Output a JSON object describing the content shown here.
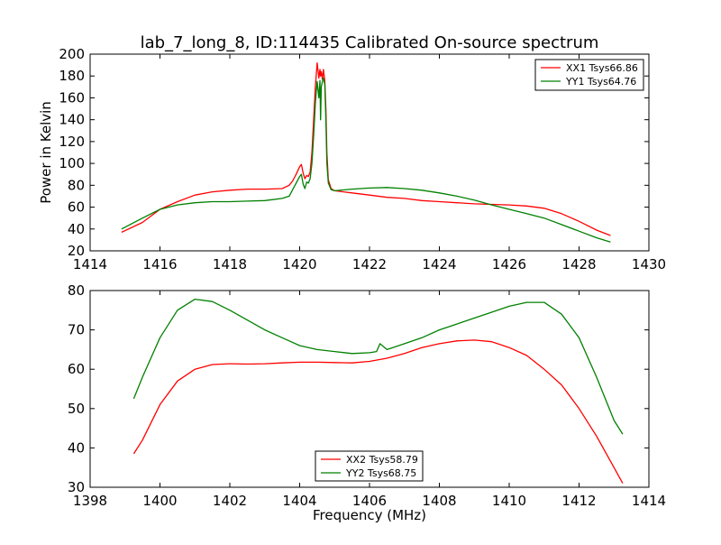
{
  "figure": {
    "title": "lab_7_long_8, ID:114435 Calibrated On-source spectrum",
    "xlabel": "Frequency (MHz)"
  },
  "colors": {
    "red": "#ff0000",
    "green": "#008000"
  },
  "chart_data": [
    {
      "type": "line",
      "title": "lab_7_long_8, ID:114435 Calibrated On-source spectrum",
      "xlabel": "",
      "ylabel": "Power in Kelvin",
      "xlim": [
        1414,
        1430
      ],
      "ylim": [
        20,
        200
      ],
      "xticks": [
        1414,
        1416,
        1418,
        1420,
        1422,
        1424,
        1426,
        1428,
        1430
      ],
      "yticks": [
        20,
        40,
        60,
        80,
        100,
        120,
        140,
        160,
        180,
        200
      ],
      "grid": false,
      "legend_position": "top-right",
      "series": [
        {
          "name": "XX1 Tsys66.86",
          "color": "#ff0000",
          "x": [
            1414.9,
            1415.5,
            1416,
            1416.5,
            1417,
            1417.5,
            1418,
            1418.5,
            1419,
            1419.5,
            1419.7,
            1419.8,
            1419.9,
            1420.0,
            1420.05,
            1420.1,
            1420.15,
            1420.2,
            1420.25,
            1420.3,
            1420.35,
            1420.4,
            1420.45,
            1420.5,
            1420.55,
            1420.58,
            1420.6,
            1420.62,
            1420.65,
            1420.68,
            1420.72,
            1420.75,
            1420.78,
            1420.82,
            1420.9,
            1421,
            1421.5,
            1422,
            1422.5,
            1423,
            1423.5,
            1424,
            1424.5,
            1425,
            1425.5,
            1426,
            1426.5,
            1427,
            1427.5,
            1428,
            1428.5,
            1428.9
          ],
          "y": [
            37,
            46,
            58,
            65,
            71,
            74,
            75.5,
            76.5,
            76.5,
            77,
            80,
            84,
            90,
            97,
            99,
            91,
            86,
            89,
            88,
            92,
            110,
            140,
            170,
            192,
            178,
            186,
            180,
            184,
            177,
            186,
            175,
            150,
            110,
            85,
            77,
            75,
            73,
            71,
            69,
            68,
            66,
            65,
            64,
            63,
            62.5,
            62,
            61,
            59,
            54,
            47,
            39,
            34
          ]
        },
        {
          "name": "YY1 Tsys64.76",
          "color": "#008000",
          "x": [
            1414.9,
            1415.5,
            1416,
            1416.5,
            1417,
            1417.5,
            1418,
            1418.5,
            1419,
            1419.5,
            1419.7,
            1419.8,
            1419.9,
            1420.0,
            1420.05,
            1420.1,
            1420.15,
            1420.2,
            1420.25,
            1420.3,
            1420.35,
            1420.4,
            1420.45,
            1420.5,
            1420.55,
            1420.58,
            1420.6,
            1420.62,
            1420.65,
            1420.68,
            1420.72,
            1420.75,
            1420.78,
            1420.82,
            1420.9,
            1421,
            1421.5,
            1422,
            1422.5,
            1423,
            1423.5,
            1424,
            1424.5,
            1425,
            1425.5,
            1426,
            1426.5,
            1427,
            1427.5,
            1428,
            1428.5,
            1428.9
          ],
          "y": [
            40,
            50,
            58,
            62,
            64,
            65,
            65,
            65.5,
            66,
            68,
            70,
            76,
            82,
            88,
            90,
            81,
            77,
            83,
            82,
            86,
            100,
            125,
            155,
            175,
            160,
            176,
            140,
            170,
            175,
            178,
            172,
            140,
            100,
            82,
            76,
            75,
            76.5,
            77.5,
            78,
            77,
            75.5,
            73,
            70,
            66.5,
            62,
            58,
            54,
            50,
            44,
            38,
            32,
            28
          ]
        }
      ]
    },
    {
      "type": "line",
      "title": "",
      "xlabel": "Frequency (MHz)",
      "ylabel": "",
      "xlim": [
        1398,
        1414
      ],
      "ylim": [
        30,
        80
      ],
      "xticks": [
        1398,
        1400,
        1402,
        1404,
        1406,
        1408,
        1410,
        1412,
        1414
      ],
      "yticks": [
        30,
        40,
        50,
        60,
        70,
        80
      ],
      "grid": false,
      "legend_position": "bottom-center",
      "series": [
        {
          "name": "XX2 Tsys58.79",
          "color": "#ff0000",
          "x": [
            1399.25,
            1399.5,
            1400,
            1400.5,
            1401,
            1401.5,
            1402,
            1402.5,
            1403,
            1403.5,
            1404,
            1404.5,
            1405,
            1405.5,
            1406,
            1406.5,
            1407,
            1407.5,
            1408,
            1408.5,
            1409,
            1409.5,
            1410,
            1410.5,
            1411,
            1411.5,
            1412,
            1412.5,
            1413,
            1413.25
          ],
          "y": [
            38.5,
            42,
            51,
            57,
            60,
            61.2,
            61.4,
            61.3,
            61.4,
            61.6,
            61.8,
            61.8,
            61.7,
            61.6,
            62,
            62.8,
            64,
            65.5,
            66.5,
            67.2,
            67.4,
            67,
            65.5,
            63.5,
            60,
            56,
            50,
            43,
            35,
            31
          ]
        },
        {
          "name": "YY2 Tsys68.75",
          "color": "#008000",
          "x": [
            1399.25,
            1399.5,
            1400,
            1400.5,
            1401,
            1401.5,
            1402,
            1402.5,
            1403,
            1403.5,
            1404,
            1404.5,
            1405,
            1405.5,
            1406,
            1406.2,
            1406.3,
            1406.5,
            1407,
            1407.5,
            1408,
            1408.5,
            1409,
            1409.5,
            1410,
            1410.5,
            1411,
            1411.5,
            1412,
            1412.5,
            1413,
            1413.25
          ],
          "y": [
            52.5,
            58,
            68,
            75,
            77.8,
            77.2,
            75,
            72.5,
            70,
            68,
            66,
            65,
            64.5,
            64,
            64.2,
            64.5,
            66.5,
            65,
            66.5,
            68,
            70,
            71.5,
            73,
            74.5,
            76,
            77,
            77,
            74,
            68,
            58,
            47,
            43.5
          ]
        }
      ]
    }
  ]
}
